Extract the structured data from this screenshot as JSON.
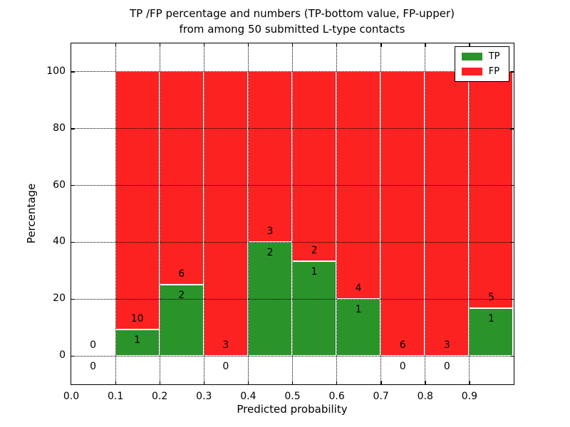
{
  "title": {
    "line1": "TP /FP percentage and numbers (TP-bottom value, FP-upper)",
    "line2": "from among 50 submitted L-type contacts"
  },
  "chart_data": {
    "type": "bar",
    "stacked": true,
    "title": "TP /FP percentage and numbers (TP-bottom value, FP-upper) from among 50 submitted L-type contacts",
    "xlabel": "Predicted probability",
    "ylabel": "Percentage",
    "xlim": [
      0.0,
      1.0
    ],
    "ylim": [
      -10,
      110
    ],
    "xticks": [
      "0.0",
      "0.1",
      "0.2",
      "0.3",
      "0.4",
      "0.5",
      "0.6",
      "0.7",
      "0.8",
      "0.9"
    ],
    "xtick_values": [
      0.0,
      0.1,
      0.2,
      0.3,
      0.4,
      0.5,
      0.6,
      0.7,
      0.8,
      0.9
    ],
    "yticks": [
      0,
      20,
      40,
      60,
      80,
      100
    ],
    "grid": "dotted black gridlines on both axes, drawn over bars",
    "colors": {
      "tp": "#2a942a",
      "fp": "#fd2222",
      "bar_edge": "#ffffff"
    },
    "legend": {
      "position": "upper right",
      "entries": [
        {
          "label": "TP",
          "color": "#2a942a"
        },
        {
          "label": "FP",
          "color": "#fd2222"
        }
      ]
    },
    "bins": [
      {
        "range": [
          0.0,
          0.1
        ],
        "tp_count": 0,
        "fp_count": 0,
        "tp_pct": 0,
        "fp_pct": 0
      },
      {
        "range": [
          0.1,
          0.2
        ],
        "tp_count": 1,
        "fp_count": 10,
        "tp_pct": 9.09,
        "fp_pct": 90.91
      },
      {
        "range": [
          0.2,
          0.3
        ],
        "tp_count": 2,
        "fp_count": 6,
        "tp_pct": 25,
        "fp_pct": 75
      },
      {
        "range": [
          0.3,
          0.4
        ],
        "tp_count": 0,
        "fp_count": 3,
        "tp_pct": 0,
        "fp_pct": 100
      },
      {
        "range": [
          0.4,
          0.5
        ],
        "tp_count": 2,
        "fp_count": 3,
        "tp_pct": 40,
        "fp_pct": 60
      },
      {
        "range": [
          0.5,
          0.6
        ],
        "tp_count": 1,
        "fp_count": 2,
        "tp_pct": 33.33,
        "fp_pct": 66.67
      },
      {
        "range": [
          0.6,
          0.7
        ],
        "tp_count": 1,
        "fp_count": 4,
        "tp_pct": 20,
        "fp_pct": 80
      },
      {
        "range": [
          0.7,
          0.8
        ],
        "tp_count": 0,
        "fp_count": 6,
        "tp_pct": 0,
        "fp_pct": 100
      },
      {
        "range": [
          0.8,
          0.9
        ],
        "tp_count": 0,
        "fp_count": 3,
        "tp_pct": 0,
        "fp_pct": 100
      },
      {
        "range": [
          0.9,
          1.0
        ],
        "tp_count": 1,
        "fp_count": 5,
        "tp_pct": 16.67,
        "fp_pct": 83.33
      }
    ]
  }
}
